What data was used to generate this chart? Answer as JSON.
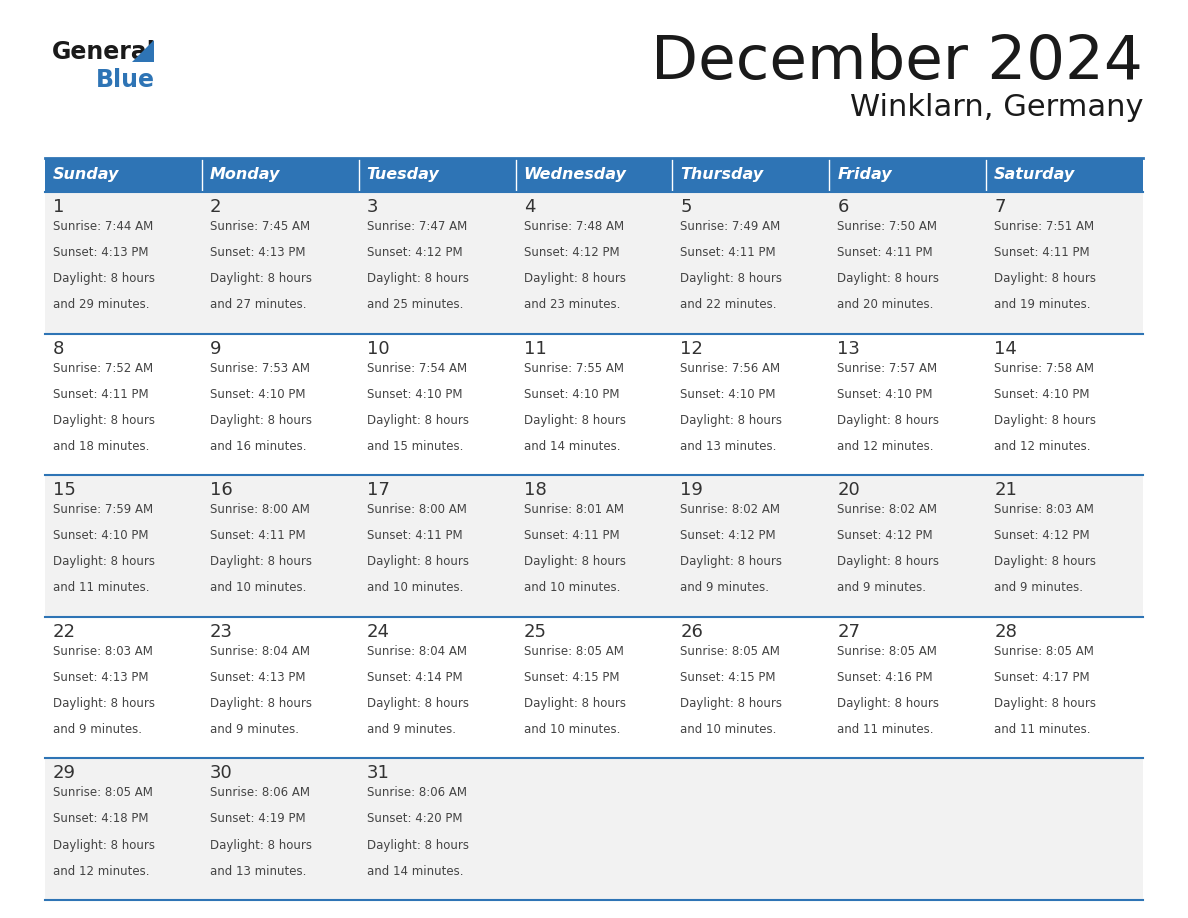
{
  "title": "December 2024",
  "subtitle": "Winklarn, Germany",
  "header_color": "#2E74B5",
  "header_text_color": "#FFFFFF",
  "days_of_week": [
    "Sunday",
    "Monday",
    "Tuesday",
    "Wednesday",
    "Thursday",
    "Friday",
    "Saturday"
  ],
  "cell_bg_odd": "#F2F2F2",
  "cell_bg_even": "#FFFFFF",
  "border_color": "#2E74B5",
  "day_number_color": "#333333",
  "text_color": "#444444",
  "weeks": [
    [
      {
        "day": 1,
        "sunrise": "7:44 AM",
        "sunset": "4:13 PM",
        "dl_hrs": 8,
        "dl_min": 29
      },
      {
        "day": 2,
        "sunrise": "7:45 AM",
        "sunset": "4:13 PM",
        "dl_hrs": 8,
        "dl_min": 27
      },
      {
        "day": 3,
        "sunrise": "7:47 AM",
        "sunset": "4:12 PM",
        "dl_hrs": 8,
        "dl_min": 25
      },
      {
        "day": 4,
        "sunrise": "7:48 AM",
        "sunset": "4:12 PM",
        "dl_hrs": 8,
        "dl_min": 23
      },
      {
        "day": 5,
        "sunrise": "7:49 AM",
        "sunset": "4:11 PM",
        "dl_hrs": 8,
        "dl_min": 22
      },
      {
        "day": 6,
        "sunrise": "7:50 AM",
        "sunset": "4:11 PM",
        "dl_hrs": 8,
        "dl_min": 20
      },
      {
        "day": 7,
        "sunrise": "7:51 AM",
        "sunset": "4:11 PM",
        "dl_hrs": 8,
        "dl_min": 19
      }
    ],
    [
      {
        "day": 8,
        "sunrise": "7:52 AM",
        "sunset": "4:11 PM",
        "dl_hrs": 8,
        "dl_min": 18
      },
      {
        "day": 9,
        "sunrise": "7:53 AM",
        "sunset": "4:10 PM",
        "dl_hrs": 8,
        "dl_min": 16
      },
      {
        "day": 10,
        "sunrise": "7:54 AM",
        "sunset": "4:10 PM",
        "dl_hrs": 8,
        "dl_min": 15
      },
      {
        "day": 11,
        "sunrise": "7:55 AM",
        "sunset": "4:10 PM",
        "dl_hrs": 8,
        "dl_min": 14
      },
      {
        "day": 12,
        "sunrise": "7:56 AM",
        "sunset": "4:10 PM",
        "dl_hrs": 8,
        "dl_min": 13
      },
      {
        "day": 13,
        "sunrise": "7:57 AM",
        "sunset": "4:10 PM",
        "dl_hrs": 8,
        "dl_min": 12
      },
      {
        "day": 14,
        "sunrise": "7:58 AM",
        "sunset": "4:10 PM",
        "dl_hrs": 8,
        "dl_min": 12
      }
    ],
    [
      {
        "day": 15,
        "sunrise": "7:59 AM",
        "sunset": "4:10 PM",
        "dl_hrs": 8,
        "dl_min": 11
      },
      {
        "day": 16,
        "sunrise": "8:00 AM",
        "sunset": "4:11 PM",
        "dl_hrs": 8,
        "dl_min": 10
      },
      {
        "day": 17,
        "sunrise": "8:00 AM",
        "sunset": "4:11 PM",
        "dl_hrs": 8,
        "dl_min": 10
      },
      {
        "day": 18,
        "sunrise": "8:01 AM",
        "sunset": "4:11 PM",
        "dl_hrs": 8,
        "dl_min": 10
      },
      {
        "day": 19,
        "sunrise": "8:02 AM",
        "sunset": "4:12 PM",
        "dl_hrs": 8,
        "dl_min": 9
      },
      {
        "day": 20,
        "sunrise": "8:02 AM",
        "sunset": "4:12 PM",
        "dl_hrs": 8,
        "dl_min": 9
      },
      {
        "day": 21,
        "sunrise": "8:03 AM",
        "sunset": "4:12 PM",
        "dl_hrs": 8,
        "dl_min": 9
      }
    ],
    [
      {
        "day": 22,
        "sunrise": "8:03 AM",
        "sunset": "4:13 PM",
        "dl_hrs": 8,
        "dl_min": 9
      },
      {
        "day": 23,
        "sunrise": "8:04 AM",
        "sunset": "4:13 PM",
        "dl_hrs": 8,
        "dl_min": 9
      },
      {
        "day": 24,
        "sunrise": "8:04 AM",
        "sunset": "4:14 PM",
        "dl_hrs": 8,
        "dl_min": 9
      },
      {
        "day": 25,
        "sunrise": "8:05 AM",
        "sunset": "4:15 PM",
        "dl_hrs": 8,
        "dl_min": 10
      },
      {
        "day": 26,
        "sunrise": "8:05 AM",
        "sunset": "4:15 PM",
        "dl_hrs": 8,
        "dl_min": 10
      },
      {
        "day": 27,
        "sunrise": "8:05 AM",
        "sunset": "4:16 PM",
        "dl_hrs": 8,
        "dl_min": 11
      },
      {
        "day": 28,
        "sunrise": "8:05 AM",
        "sunset": "4:17 PM",
        "dl_hrs": 8,
        "dl_min": 11
      }
    ],
    [
      {
        "day": 29,
        "sunrise": "8:05 AM",
        "sunset": "4:18 PM",
        "dl_hrs": 8,
        "dl_min": 12
      },
      {
        "day": 30,
        "sunrise": "8:06 AM",
        "sunset": "4:19 PM",
        "dl_hrs": 8,
        "dl_min": 13
      },
      {
        "day": 31,
        "sunrise": "8:06 AM",
        "sunset": "4:20 PM",
        "dl_hrs": 8,
        "dl_min": 14
      },
      null,
      null,
      null,
      null
    ]
  ]
}
